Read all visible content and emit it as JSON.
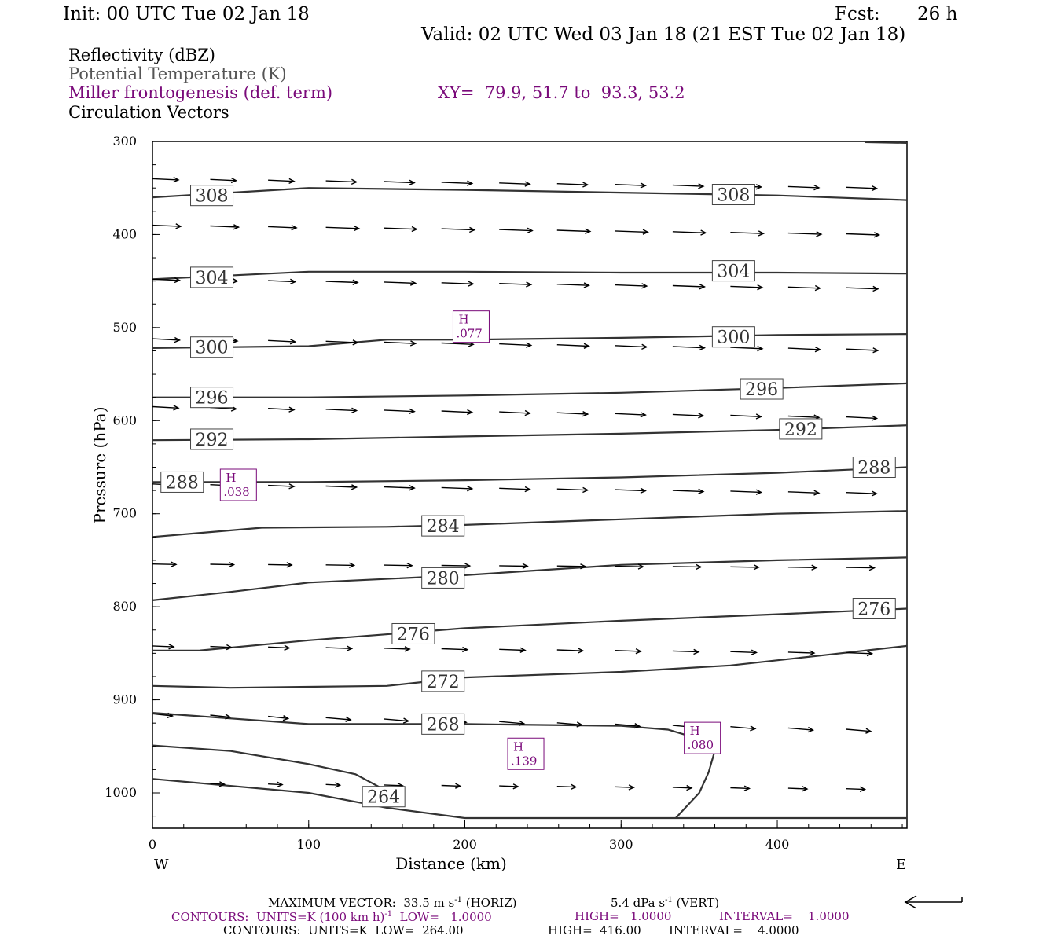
{
  "header": {
    "init": "Init: 00 UTC Tue 02 Jan 18",
    "fcst_label": "Fcst:",
    "fcst_value": "26 h",
    "valid": "Valid: 02 UTC Wed 03 Jan 18 (21 EST Tue 02 Jan 18)"
  },
  "legend": {
    "reflectivity": "Reflectivity (dBZ)",
    "potential_temp": "Potential Temperature (K)",
    "miller": "Miller frontogenesis (def. term)",
    "xy": "XY=  79.9, 51.7 to  93.3, 53.2",
    "circulation": "Circulation Vectors"
  },
  "footer": {
    "max_vector": "MAXIMUM VECTOR:  33.5 m s",
    "max_vector_horiz": " (HORIZ)",
    "max_vector_vert_value": "5.4 dPa s",
    "max_vector_vert": " (VERT)",
    "superscript": "-1",
    "contours1_a": "CONTOURS:  UNITS=K (100 km h)",
    "contours1_b": "  LOW=   1.0000",
    "contours1_high": "HIGH=   1.0000",
    "contours1_interval": "INTERVAL=    1.0000",
    "contours2": "CONTOURS:  UNITS=K  LOW=  264.00",
    "contours2_high": "HIGH=  416.00",
    "contours2_interval": "INTERVAL=    4.0000"
  },
  "colors": {
    "theta": "#333333",
    "frontogenesis": "#7a0a7a",
    "vectors": "#000000"
  },
  "chart_data": {
    "type": "line",
    "xlabel": "Distance (km)",
    "ylabel": "Pressure (hPa)",
    "xlim": [
      0,
      483
    ],
    "ylim": [
      300,
      1038
    ],
    "y_scale": "linear (pressure increasing downward)",
    "x_ticks": [
      "0",
      "100",
      "200",
      "300",
      "400"
    ],
    "y_ticks": [
      "300",
      "400",
      "500",
      "600",
      "700",
      "800",
      "900",
      "1000"
    ],
    "x_end_labels": {
      "left": "W",
      "right": "E"
    },
    "isentropes": [
      {
        "theta": "308",
        "points": [
          [
            0,
            360
          ],
          [
            100,
            350
          ],
          [
            200,
            352
          ],
          [
            300,
            355
          ],
          [
            400,
            358
          ],
          [
            483,
            363
          ]
        ],
        "labels": [
          [
            38,
            358
          ],
          [
            372,
            357
          ]
        ]
      },
      {
        "theta": "304",
        "points": [
          [
            0,
            448
          ],
          [
            100,
            440
          ],
          [
            200,
            440
          ],
          [
            300,
            441
          ],
          [
            400,
            441
          ],
          [
            483,
            442
          ]
        ],
        "labels": [
          [
            38,
            446
          ],
          [
            372,
            439
          ]
        ]
      },
      {
        "theta": "300",
        "points": [
          [
            0,
            522
          ],
          [
            100,
            520
          ],
          [
            150,
            513
          ],
          [
            200,
            513
          ],
          [
            300,
            511
          ],
          [
            400,
            508
          ],
          [
            483,
            507
          ]
        ],
        "labels": [
          [
            38,
            521
          ],
          [
            372,
            510
          ]
        ]
      },
      {
        "theta": "296",
        "points": [
          [
            0,
            575
          ],
          [
            100,
            575
          ],
          [
            200,
            573
          ],
          [
            300,
            570
          ],
          [
            400,
            565
          ],
          [
            483,
            560
          ]
        ],
        "labels": [
          [
            38,
            575
          ],
          [
            390,
            566
          ]
        ]
      },
      {
        "theta": "292",
        "points": [
          [
            0,
            621
          ],
          [
            100,
            620
          ],
          [
            200,
            617
          ],
          [
            300,
            614
          ],
          [
            400,
            610
          ],
          [
            483,
            605
          ]
        ],
        "labels": [
          [
            38,
            620
          ],
          [
            415,
            609
          ]
        ]
      },
      {
        "theta": "288",
        "points": [
          [
            0,
            666
          ],
          [
            100,
            666
          ],
          [
            200,
            664
          ],
          [
            300,
            661
          ],
          [
            400,
            656
          ],
          [
            483,
            650
          ]
        ],
        "labels": [
          [
            19,
            666
          ],
          [
            462,
            650
          ]
        ]
      },
      {
        "theta": "284",
        "points": [
          [
            0,
            725
          ],
          [
            70,
            715
          ],
          [
            150,
            714
          ],
          [
            200,
            712
          ],
          [
            300,
            706
          ],
          [
            400,
            700
          ],
          [
            483,
            697
          ]
        ],
        "labels": [
          [
            186,
            713
          ]
        ]
      },
      {
        "theta": "280",
        "points": [
          [
            0,
            793
          ],
          [
            50,
            784
          ],
          [
            100,
            774
          ],
          [
            200,
            766
          ],
          [
            300,
            755
          ],
          [
            400,
            750
          ],
          [
            483,
            747
          ]
        ],
        "labels": [
          [
            186,
            769
          ]
        ]
      },
      {
        "theta": "276",
        "points": [
          [
            0,
            847
          ],
          [
            30,
            847
          ],
          [
            100,
            836
          ],
          [
            200,
            823
          ],
          [
            300,
            815
          ],
          [
            400,
            808
          ],
          [
            483,
            802
          ]
        ],
        "labels": [
          [
            167,
            829
          ],
          [
            462,
            802
          ]
        ]
      },
      {
        "theta": "272",
        "points": [
          [
            0,
            885
          ],
          [
            50,
            887
          ],
          [
            150,
            885
          ],
          [
            200,
            876
          ],
          [
            300,
            870
          ],
          [
            370,
            863
          ],
          [
            430,
            852
          ],
          [
            483,
            842
          ]
        ],
        "labels": [
          [
            186,
            880
          ]
        ]
      },
      {
        "theta": "268",
        "points": [
          [
            0,
            914
          ],
          [
            100,
            926
          ],
          [
            200,
            926
          ],
          [
            300,
            928
          ],
          [
            330,
            932
          ],
          [
            350,
            942
          ],
          [
            360,
            955
          ],
          [
            356,
            978
          ],
          [
            350,
            1000
          ],
          [
            340,
            1018
          ],
          [
            335,
            1027
          ]
        ],
        "labels": [
          [
            186,
            926
          ]
        ]
      },
      {
        "theta": "264",
        "points": [
          [
            0,
            985
          ],
          [
            100,
            1000
          ],
          [
            150,
            1016
          ],
          [
            200,
            1027
          ],
          [
            300,
            1027
          ],
          [
            400,
            1027
          ],
          [
            483,
            1027
          ]
        ],
        "labels": [
          [
            148,
            1004
          ]
        ]
      },
      {
        "theta": "unlabeled",
        "points": [
          [
            0,
            949
          ],
          [
            50,
            955
          ],
          [
            100,
            969
          ],
          [
            130,
            980
          ],
          [
            150,
            998
          ]
        ],
        "labels": []
      }
    ],
    "frontogenesis_maxima": [
      {
        "label": "H",
        "value": ".077",
        "x": 204,
        "p": 499
      },
      {
        "label": "H",
        "value": ".038",
        "x": 55,
        "p": 669
      },
      {
        "label": "H",
        "value": ".080",
        "x": 352,
        "p": 941
      },
      {
        "label": "H",
        "value": ".139",
        "x": 239,
        "p": 958
      }
    ],
    "vector_rows": [
      {
        "p": 340,
        "x0": 0,
        "dx": 37,
        "n": 13,
        "len": 22,
        "dp": 5
      },
      {
        "p": 390,
        "x0": 0,
        "dx": 37,
        "n": 13,
        "len": 24,
        "dp": 5
      },
      {
        "p": 448,
        "x0": 0,
        "dx": 37,
        "n": 13,
        "len": 23,
        "dp": 5
      },
      {
        "p": 512,
        "x0": 0,
        "dx": 37,
        "n": 13,
        "len": 23,
        "dp": 6
      },
      {
        "p": 585,
        "x0": 0,
        "dx": 37,
        "n": 13,
        "len": 22,
        "dp": 6
      },
      {
        "p": 668,
        "x0": 0,
        "dx": 37,
        "n": 13,
        "len": 22,
        "dp": 5
      },
      {
        "p": 754,
        "x0": 0,
        "dx": 37,
        "n": 13,
        "len": 20,
        "dp": 2
      },
      {
        "p": 842,
        "x0": 0,
        "dx": 37,
        "n": 13,
        "len": 18,
        "dp": 4
      },
      {
        "p": 915,
        "x0": 0,
        "dx": 37,
        "n": 13,
        "len": 17,
        "dp": 9
      },
      {
        "p": 990,
        "x0": 37,
        "dx": 37,
        "n": 12,
        "len": 12,
        "dp": 3
      }
    ]
  }
}
